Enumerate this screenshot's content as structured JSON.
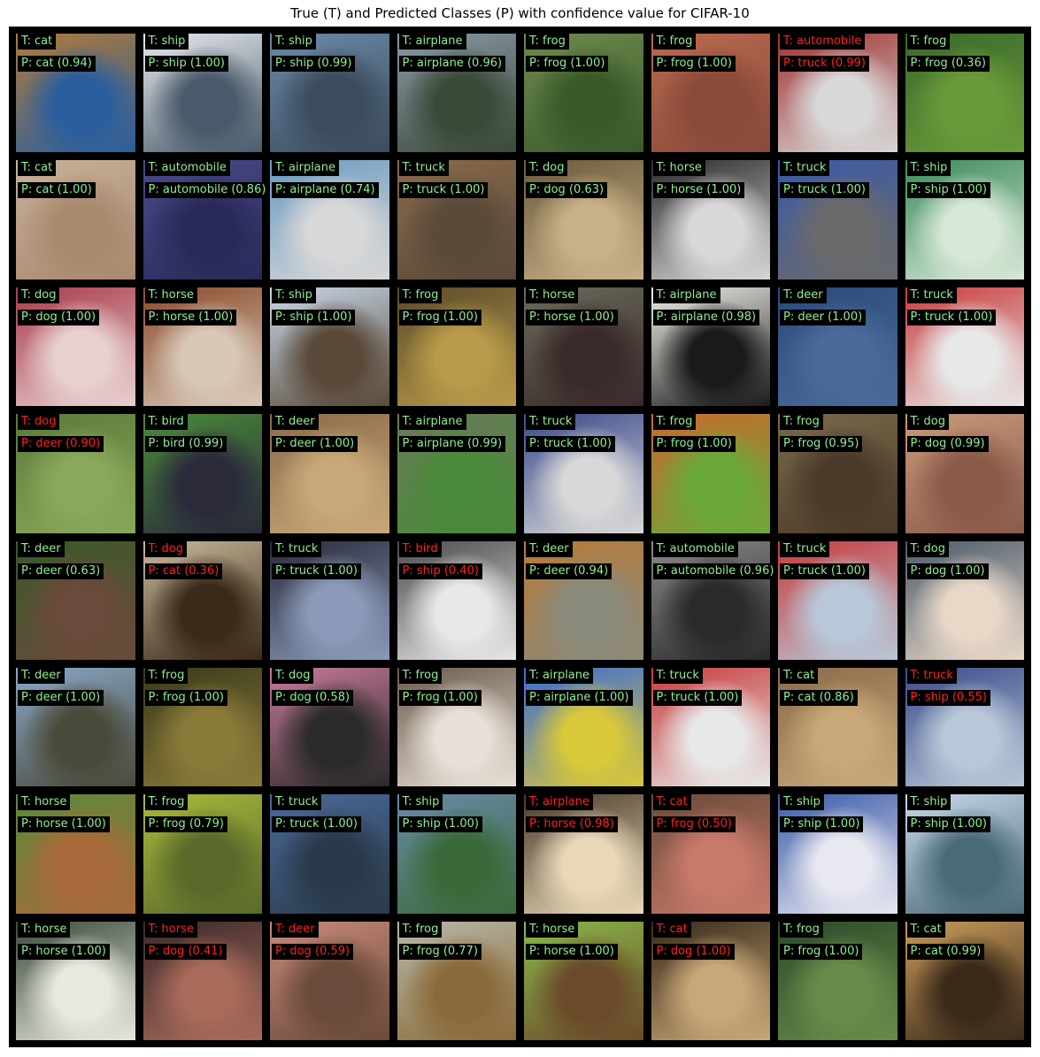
{
  "title": "True (T) and Predicted Classes (P) with confidence value for CIFAR-10",
  "colors": {
    "correct": "#90ee90",
    "incorrect": "#ff2020",
    "background": "#000000"
  },
  "samples": [
    {
      "t": "T: cat",
      "p": "P: cat (0.94)",
      "ok": true,
      "c1": "#b07a3a",
      "c2": "#2a5e9e"
    },
    {
      "t": "T: ship",
      "p": "P: ship (1.00)",
      "ok": true,
      "c1": "#e6eaee",
      "c2": "#4a5a6a"
    },
    {
      "t": "T: ship",
      "p": "P: ship (0.99)",
      "ok": true,
      "c1": "#6a8aa8",
      "c2": "#3c4c5e"
    },
    {
      "t": "T: airplane",
      "p": "P: airplane (0.96)",
      "ok": true,
      "c1": "#8a9aa8",
      "c2": "#3a4a38"
    },
    {
      "t": "T: frog",
      "p": "P: frog (1.00)",
      "ok": true,
      "c1": "#6e8a4e",
      "c2": "#3a5a2a"
    },
    {
      "t": "T: frog",
      "p": "P: frog (1.00)",
      "ok": true,
      "c1": "#b86a4e",
      "c2": "#8a4a3a"
    },
    {
      "t": "T: automobile",
      "p": "P: truck (0.99)",
      "ok": false,
      "c1": "#a03030",
      "c2": "#d8d8d8"
    },
    {
      "t": "T: frog",
      "p": "P: frog (0.36)",
      "ok": true,
      "c1": "#3a6a2a",
      "c2": "#6a9a3a"
    },
    {
      "t": "T: cat",
      "p": "P: cat (1.00)",
      "ok": true,
      "c1": "#c8b098",
      "c2": "#a88a70"
    },
    {
      "t": "T: automobile",
      "p": "P: automobile (0.86)",
      "ok": true,
      "c1": "#4a4a8a",
      "c2": "#2a2a5a"
    },
    {
      "t": "T: airplane",
      "p": "P: airplane (0.74)",
      "ok": true,
      "c1": "#6a9ac0",
      "c2": "#d8d8d8"
    },
    {
      "t": "T: truck",
      "p": "P: truck (1.00)",
      "ok": true,
      "c1": "#8a6a4a",
      "c2": "#5a4a3a"
    },
    {
      "t": "T: dog",
      "p": "P: dog (0.63)",
      "ok": true,
      "c1": "#6a5a3a",
      "c2": "#c8b088"
    },
    {
      "t": "T: horse",
      "p": "P: horse (1.00)",
      "ok": true,
      "c1": "#2a2a2a",
      "c2": "#d8d8d8"
    },
    {
      "t": "T: truck",
      "p": "P: truck (1.00)",
      "ok": true,
      "c1": "#3a5aa8",
      "c2": "#6a6a6a"
    },
    {
      "t": "T: ship",
      "p": "P: ship (1.00)",
      "ok": true,
      "c1": "#3a8a5a",
      "c2": "#d8e8d8"
    },
    {
      "t": "T: dog",
      "p": "P: dog (1.00)",
      "ok": true,
      "c1": "#a83a4a",
      "c2": "#e8d0d0"
    },
    {
      "t": "T: horse",
      "p": "P: horse (1.00)",
      "ok": true,
      "c1": "#8a4a2a",
      "c2": "#d8c8b8"
    },
    {
      "t": "T: ship",
      "p": "P: ship (1.00)",
      "ok": true,
      "c1": "#c8d8e8",
      "c2": "#5a4a3a"
    },
    {
      "t": "T: frog",
      "p": "P: frog (1.00)",
      "ok": true,
      "c1": "#5a4a2a",
      "c2": "#b89a4a"
    },
    {
      "t": "T: horse",
      "p": "P: horse (1.00)",
      "ok": true,
      "c1": "#6a6a5a",
      "c2": "#3a2a2a"
    },
    {
      "t": "T: airplane",
      "p": "P: airplane (0.98)",
      "ok": true,
      "c1": "#f0f0ea",
      "c2": "#1a1a1a"
    },
    {
      "t": "T: deer",
      "p": "P: deer (1.00)",
      "ok": true,
      "c1": "#2a4a7a",
      "c2": "#4a6a9a"
    },
    {
      "t": "T: truck",
      "p": "P: truck (1.00)",
      "ok": true,
      "c1": "#c83a3a",
      "c2": "#e8e8e8"
    },
    {
      "t": "T: dog",
      "p": "P: deer (0.90)",
      "ok": false,
      "c1": "#5a7a3a",
      "c2": "#8aa85a"
    },
    {
      "t": "T: bird",
      "p": "P: bird (0.99)",
      "ok": true,
      "c1": "#4a8a3a",
      "c2": "#2a2a3a"
    },
    {
      "t": "T: deer",
      "p": "P: deer (1.00)",
      "ok": true,
      "c1": "#8a6a4a",
      "c2": "#c8a878"
    },
    {
      "t": "T: airplane",
      "p": "P: airplane (0.99)",
      "ok": true,
      "c1": "#6a7a5a",
      "c2": "#4a8a3a"
    },
    {
      "t": "T: truck",
      "p": "P: truck (1.00)",
      "ok": true,
      "c1": "#3a4a8a",
      "c2": "#d8d8d8"
    },
    {
      "t": "T: frog",
      "p": "P: frog (1.00)",
      "ok": true,
      "c1": "#c86a2a",
      "c2": "#6aa83a"
    },
    {
      "t": "T: frog",
      "p": "P: frog (0.95)",
      "ok": true,
      "c1": "#7a6a4a",
      "c2": "#4a3a2a"
    },
    {
      "t": "T: dog",
      "p": "P: dog (0.99)",
      "ok": true,
      "c1": "#c89a7a",
      "c2": "#8a5a4a"
    },
    {
      "t": "T: deer",
      "p": "P: deer (0.63)",
      "ok": true,
      "c1": "#3a5a2a",
      "c2": "#6a4a3a"
    },
    {
      "t": "T: dog",
      "p": "P: cat (0.36)",
      "ok": false,
      "c1": "#c8b89a",
      "c2": "#3a2a1a"
    },
    {
      "t": "T: truck",
      "p": "P: truck (1.00)",
      "ok": true,
      "c1": "#2a2a3a",
      "c2": "#8a9ab8"
    },
    {
      "t": "T: bird",
      "p": "P: ship (0.40)",
      "ok": false,
      "c1": "#4a4a4a",
      "c2": "#e8e8e8"
    },
    {
      "t": "T: deer",
      "p": "P: deer (0.94)",
      "ok": true,
      "c1": "#b87a3a",
      "c2": "#8a8a7a"
    },
    {
      "t": "T: automobile",
      "p": "P: automobile (0.96)",
      "ok": true,
      "c1": "#8a8a8a",
      "c2": "#2a2a2a"
    },
    {
      "t": "T: truck",
      "p": "P: truck (1.00)",
      "ok": true,
      "c1": "#c83a3a",
      "c2": "#b8c8d8"
    },
    {
      "t": "T: dog",
      "p": "P: dog (1.00)",
      "ok": true,
      "c1": "#4a5a6a",
      "c2": "#e8d8c8"
    },
    {
      "t": "T: deer",
      "p": "P: deer (1.00)",
      "ok": true,
      "c1": "#8aa8c8",
      "c2": "#4a4a3a"
    },
    {
      "t": "T: frog",
      "p": "P: frog (1.00)",
      "ok": true,
      "c1": "#3a3a1a",
      "c2": "#8a7a3a"
    },
    {
      "t": "T: dog",
      "p": "P: dog (0.58)",
      "ok": true,
      "c1": "#c87a9a",
      "c2": "#2a2a2a"
    },
    {
      "t": "T: frog",
      "p": "P: frog (1.00)",
      "ok": true,
      "c1": "#6a5a4a",
      "c2": "#e8e0d8"
    },
    {
      "t": "T: airplane",
      "p": "P: airplane (1.00)",
      "ok": true,
      "c1": "#3a6ad8",
      "c2": "#d8c83a"
    },
    {
      "t": "T: truck",
      "p": "P: truck (1.00)",
      "ok": true,
      "c1": "#c83a3a",
      "c2": "#e8e8e8"
    },
    {
      "t": "T: cat",
      "p": "P: cat (0.86)",
      "ok": true,
      "c1": "#8a6a4a",
      "c2": "#c8a878"
    },
    {
      "t": "T: truck",
      "p": "P: ship (0.55)",
      "ok": false,
      "c1": "#3a4a8a",
      "c2": "#b8c8d8"
    },
    {
      "t": "T: horse",
      "p": "P: horse (1.00)",
      "ok": true,
      "c1": "#5a8a3a",
      "c2": "#a86a3a"
    },
    {
      "t": "T: frog",
      "p": "P: frog (0.79)",
      "ok": true,
      "c1": "#a8b83a",
      "c2": "#5a6a2a"
    },
    {
      "t": "T: truck",
      "p": "P: truck (1.00)",
      "ok": true,
      "c1": "#4a6a9a",
      "c2": "#2a3a4a"
    },
    {
      "t": "T: ship",
      "p": "P: ship (1.00)",
      "ok": true,
      "c1": "#6a8aa8",
      "c2": "#3a6a3a"
    },
    {
      "t": "T: airplane",
      "p": "P: horse (0.98)",
      "ok": false,
      "c1": "#4a3a2a",
      "c2": "#e8d8b8"
    },
    {
      "t": "T: cat",
      "p": "P: frog (0.50)",
      "ok": false,
      "c1": "#6a4a3a",
      "c2": "#c87a6a"
    },
    {
      "t": "T: ship",
      "p": "P: ship (1.00)",
      "ok": true,
      "c1": "#3a5aa8",
      "c2": "#e8e8f0"
    },
    {
      "t": "T: ship",
      "p": "P: ship (1.00)",
      "ok": true,
      "c1": "#c8d8e8",
      "c2": "#4a6a7a"
    },
    {
      "t": "T: horse",
      "p": "P: horse (1.00)",
      "ok": true,
      "c1": "#3a4a3a",
      "c2": "#e8e8e0"
    },
    {
      "t": "T: horse",
      "p": "P: dog (0.41)",
      "ok": false,
      "c1": "#3a2a2a",
      "c2": "#a86a5a"
    },
    {
      "t": "T: deer",
      "p": "P: dog (0.59)",
      "ok": false,
      "c1": "#c88a7a",
      "c2": "#6a4a3a"
    },
    {
      "t": "T: frog",
      "p": "P: frog (0.77)",
      "ok": true,
      "c1": "#b8b8a8",
      "c2": "#8a6a3a"
    },
    {
      "t": "T: horse",
      "p": "P: horse (1.00)",
      "ok": true,
      "c1": "#8ab84a",
      "c2": "#6a4a2a"
    },
    {
      "t": "T: cat",
      "p": "P: dog (1.00)",
      "ok": false,
      "c1": "#3a2a1a",
      "c2": "#c8a878"
    },
    {
      "t": "T: frog",
      "p": "P: frog (1.00)",
      "ok": true,
      "c1": "#2a4a2a",
      "c2": "#6a8a4a"
    },
    {
      "t": "T: cat",
      "p": "P: cat (0.99)",
      "ok": true,
      "c1": "#c89a5a",
      "c2": "#3a2a1a"
    }
  ]
}
